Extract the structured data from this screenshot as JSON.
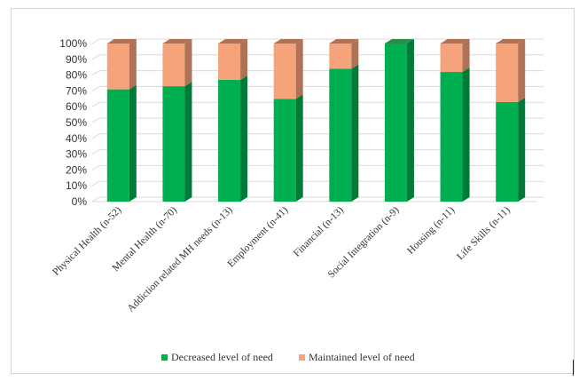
{
  "chart_data": {
    "type": "bar",
    "stacked": true,
    "three_d": true,
    "categories": [
      "Physical Health (n-52)",
      "Mental Health (n-70)",
      "Addiction related MH needs (n-13)",
      "Employment (n-41)",
      "Financial (n-13)",
      "Social Integration (n-9)",
      "Housing (n-11)",
      "Life Skills (n-11)"
    ],
    "series": [
      {
        "name": "Decreased level of need",
        "color": "#00b050",
        "side": "#007a37",
        "top": "#2d8a4e",
        "values": [
          71,
          73,
          77,
          65,
          84,
          100,
          82,
          63
        ]
      },
      {
        "name": "Maintained level of need",
        "color": "#f4a37a",
        "side": "#b07256",
        "top": "#b07256",
        "values": [
          29,
          27,
          23,
          35,
          16,
          0,
          18,
          37
        ]
      }
    ],
    "ylim": [
      0,
      100
    ],
    "yticks": [
      "0%",
      "10%",
      "20%",
      "30%",
      "40%",
      "50%",
      "60%",
      "70%",
      "80%",
      "90%",
      "100%"
    ],
    "title": "",
    "xlabel": "",
    "ylabel": "",
    "grid": true,
    "legend_position": "bottom"
  }
}
